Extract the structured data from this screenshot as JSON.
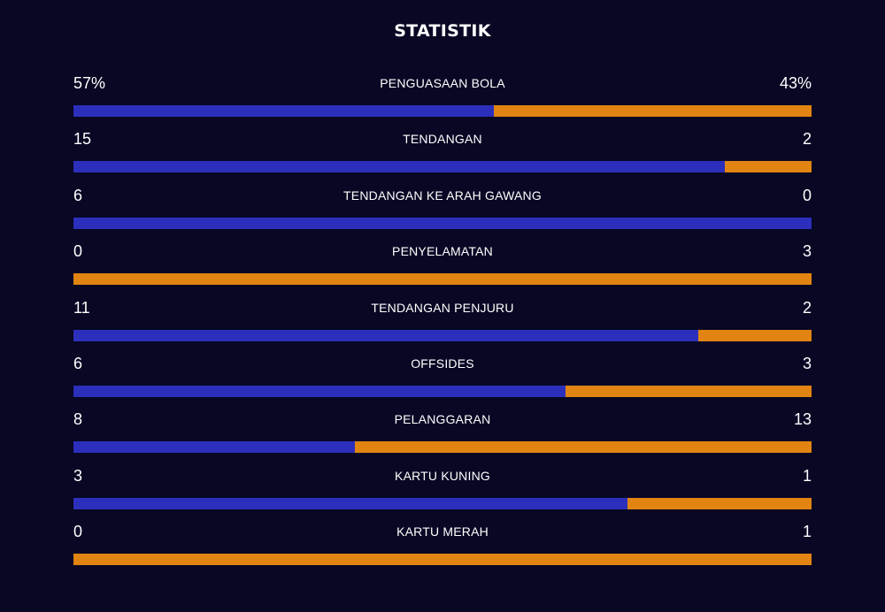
{
  "title": "STATISTIK",
  "colors": {
    "background": "#080724",
    "home": "#2c2fbb",
    "away": "#e18412"
  },
  "stats": [
    {
      "label": "PENGUASAAN BOLA",
      "home": "57%",
      "away": "43%",
      "home_value": 57,
      "away_value": 43
    },
    {
      "label": "TENDANGAN",
      "home": "15",
      "away": "2",
      "home_value": 15,
      "away_value": 2
    },
    {
      "label": "TENDANGAN KE ARAH GAWANG",
      "home": "6",
      "away": "0",
      "home_value": 6,
      "away_value": 0
    },
    {
      "label": "PENYELAMATAN",
      "home": "0",
      "away": "3",
      "home_value": 0,
      "away_value": 3
    },
    {
      "label": "TENDANGAN PENJURU",
      "home": "11",
      "away": "2",
      "home_value": 11,
      "away_value": 2
    },
    {
      "label": "OFFSIDES",
      "home": "6",
      "away": "3",
      "home_value": 6,
      "away_value": 3
    },
    {
      "label": "PELANGGARAN",
      "home": "8",
      "away": "13",
      "home_value": 8,
      "away_value": 13
    },
    {
      "label": "KARTU KUNING",
      "home": "3",
      "away": "1",
      "home_value": 3,
      "away_value": 1
    },
    {
      "label": "KARTU MERAH",
      "home": "0",
      "away": "1",
      "home_value": 0,
      "away_value": 1
    }
  ]
}
